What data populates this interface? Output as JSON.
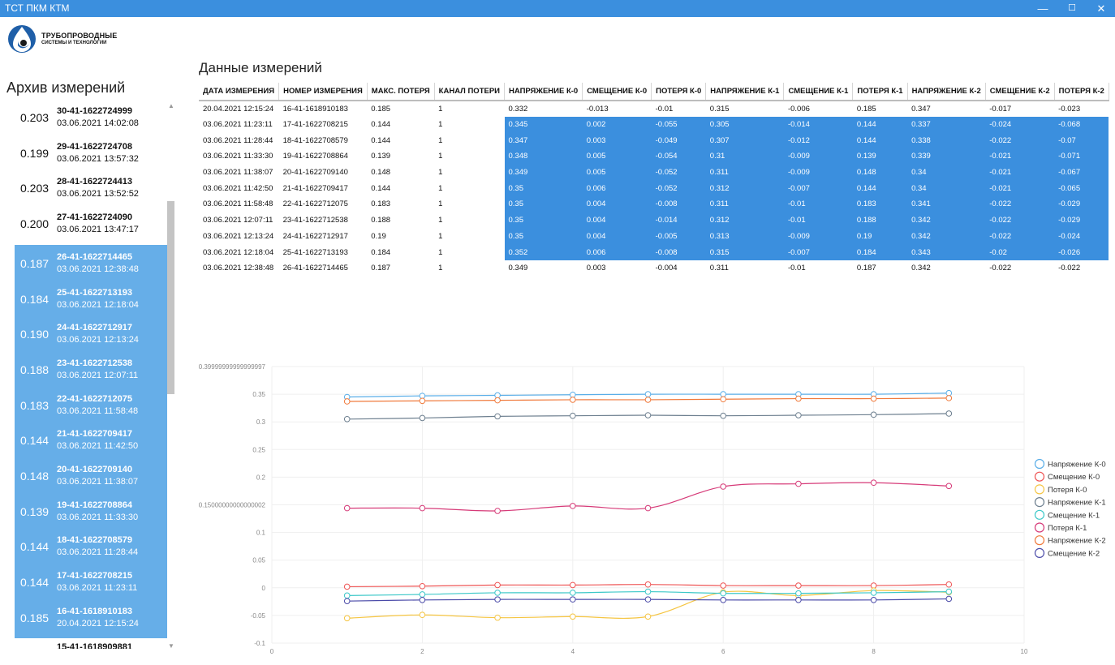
{
  "window": {
    "title": "ТСТ ПКМ КТМ",
    "min_glyph": "—",
    "max_glyph": "☐",
    "close_glyph": "✕"
  },
  "logo": {
    "line1": "ТРУБОПРОВОДНЫЕ",
    "line2": "СИСТЕМЫ И ТЕХНОЛОГИИ"
  },
  "archive": {
    "title": "Архив измерений",
    "items": [
      {
        "value": "0.203",
        "id": "30-41-1622724999",
        "date": "03.06.2021 14:02:08",
        "selected": false
      },
      {
        "value": "0.199",
        "id": "29-41-1622724708",
        "date": "03.06.2021 13:57:32",
        "selected": false
      },
      {
        "value": "0.203",
        "id": "28-41-1622724413",
        "date": "03.06.2021 13:52:52",
        "selected": false
      },
      {
        "value": "0.200",
        "id": "27-41-1622724090",
        "date": "03.06.2021 13:47:17",
        "selected": false
      },
      {
        "value": "0.187",
        "id": "26-41-1622714465",
        "date": "03.06.2021 12:38:48",
        "selected": true
      },
      {
        "value": "0.184",
        "id": "25-41-1622713193",
        "date": "03.06.2021 12:18:04",
        "selected": true
      },
      {
        "value": "0.190",
        "id": "24-41-1622712917",
        "date": "03.06.2021 12:13:24",
        "selected": true
      },
      {
        "value": "0.188",
        "id": "23-41-1622712538",
        "date": "03.06.2021 12:07:11",
        "selected": true
      },
      {
        "value": "0.183",
        "id": "22-41-1622712075",
        "date": "03.06.2021 11:58:48",
        "selected": true
      },
      {
        "value": "0.144",
        "id": "21-41-1622709417",
        "date": "03.06.2021 11:42:50",
        "selected": true
      },
      {
        "value": "0.148",
        "id": "20-41-1622709140",
        "date": "03.06.2021 11:38:07",
        "selected": true
      },
      {
        "value": "0.139",
        "id": "19-41-1622708864",
        "date": "03.06.2021 11:33:30",
        "selected": true
      },
      {
        "value": "0.144",
        "id": "18-41-1622708579",
        "date": "03.06.2021 11:28:44",
        "selected": true
      },
      {
        "value": "0.144",
        "id": "17-41-1622708215",
        "date": "03.06.2021 11:23:11",
        "selected": true
      },
      {
        "value": "0.185",
        "id": "16-41-1618910183",
        "date": "20.04.2021 12:15:24",
        "selected": true
      },
      {
        "value": "",
        "id": "15-41-1618909881",
        "date": "",
        "selected": false
      }
    ]
  },
  "measurements": {
    "title": "Данные измерений",
    "columns": [
      "ДАТА ИЗМЕРЕНИЯ",
      "НОМЕР ИЗМЕРЕНИЯ",
      "МАКС. ПОТЕРЯ",
      "КАНАЛ ПОТЕРИ",
      "НАПРЯЖЕНИЕ К-0",
      "СМЕЩЕНИЕ К-0",
      "ПОТЕРЯ К-0",
      "НАПРЯЖЕНИЕ К-1",
      "СМЕЩЕНИЕ К-1",
      "ПОТЕРЯ К-1",
      "НАПРЯЖЕНИЕ К-2",
      "СМЕЩЕНИЕ К-2",
      "ПОТЕРЯ К-2"
    ],
    "rows": [
      {
        "selected": false,
        "cells": [
          "20.04.2021 12:15:24",
          "16-41-1618910183",
          "0.185",
          "1",
          "0.332",
          "-0.013",
          "-0.01",
          "0.315",
          "-0.006",
          "0.185",
          "0.347",
          "-0.017",
          "-0.023"
        ]
      },
      {
        "selected": true,
        "cells": [
          "03.06.2021 11:23:11",
          "17-41-1622708215",
          "0.144",
          "1",
          "0.345",
          "0.002",
          "-0.055",
          "0.305",
          "-0.014",
          "0.144",
          "0.337",
          "-0.024",
          "-0.068"
        ]
      },
      {
        "selected": true,
        "cells": [
          "03.06.2021 11:28:44",
          "18-41-1622708579",
          "0.144",
          "1",
          "0.347",
          "0.003",
          "-0.049",
          "0.307",
          "-0.012",
          "0.144",
          "0.338",
          "-0.022",
          "-0.07"
        ]
      },
      {
        "selected": true,
        "cells": [
          "03.06.2021 11:33:30",
          "19-41-1622708864",
          "0.139",
          "1",
          "0.348",
          "0.005",
          "-0.054",
          "0.31",
          "-0.009",
          "0.139",
          "0.339",
          "-0.021",
          "-0.071"
        ]
      },
      {
        "selected": true,
        "cells": [
          "03.06.2021 11:38:07",
          "20-41-1622709140",
          "0.148",
          "1",
          "0.349",
          "0.005",
          "-0.052",
          "0.311",
          "-0.009",
          "0.148",
          "0.34",
          "-0.021",
          "-0.067"
        ]
      },
      {
        "selected": true,
        "cells": [
          "03.06.2021 11:42:50",
          "21-41-1622709417",
          "0.144",
          "1",
          "0.35",
          "0.006",
          "-0.052",
          "0.312",
          "-0.007",
          "0.144",
          "0.34",
          "-0.021",
          "-0.065"
        ]
      },
      {
        "selected": true,
        "cells": [
          "03.06.2021 11:58:48",
          "22-41-1622712075",
          "0.183",
          "1",
          "0.35",
          "0.004",
          "-0.008",
          "0.311",
          "-0.01",
          "0.183",
          "0.341",
          "-0.022",
          "-0.029"
        ]
      },
      {
        "selected": true,
        "cells": [
          "03.06.2021 12:07:11",
          "23-41-1622712538",
          "0.188",
          "1",
          "0.35",
          "0.004",
          "-0.014",
          "0.312",
          "-0.01",
          "0.188",
          "0.342",
          "-0.022",
          "-0.029"
        ]
      },
      {
        "selected": true,
        "cells": [
          "03.06.2021 12:13:24",
          "24-41-1622712917",
          "0.19",
          "1",
          "0.35",
          "0.004",
          "-0.005",
          "0.313",
          "-0.009",
          "0.19",
          "0.342",
          "-0.022",
          "-0.024"
        ]
      },
      {
        "selected": true,
        "cells": [
          "03.06.2021 12:18:04",
          "25-41-1622713193",
          "0.184",
          "1",
          "0.352",
          "0.006",
          "-0.008",
          "0.315",
          "-0.007",
          "0.184",
          "0.343",
          "-0.02",
          "-0.026"
        ]
      },
      {
        "selected": false,
        "cells": [
          "03.06.2021 12:38:48",
          "26-41-1622714465",
          "0.187",
          "1",
          "0.349",
          "0.003",
          "-0.004",
          "0.311",
          "-0.01",
          "0.187",
          "0.342",
          "-0.022",
          "-0.022"
        ]
      }
    ]
  },
  "chart_data": {
    "type": "line",
    "title": "",
    "xlabel": "",
    "ylabel": "",
    "xlim": [
      0,
      10
    ],
    "ylim": [
      -0.1,
      0.4
    ],
    "grid": true,
    "legend_position": "right",
    "x_ticks": [
      "0",
      "2",
      "4",
      "6",
      "8",
      "10"
    ],
    "y_ticks": [
      {
        "value": 0.4,
        "label": "0.39999999999999997"
      },
      {
        "value": 0.35,
        "label": "0.35"
      },
      {
        "value": 0.3,
        "label": "0.3"
      },
      {
        "value": 0.25,
        "label": "0.25"
      },
      {
        "value": 0.2,
        "label": "0.2"
      },
      {
        "value": 0.15,
        "label": "0.15000000000000002"
      },
      {
        "value": 0.1,
        "label": "0.1"
      },
      {
        "value": 0.05,
        "label": "0.05"
      },
      {
        "value": 0,
        "label": "0"
      },
      {
        "value": -0.05,
        "label": "-0.05"
      },
      {
        "value": -0.1,
        "label": "-0.1"
      }
    ],
    "x": [
      1,
      2,
      3,
      4,
      5,
      6,
      7,
      8,
      9
    ],
    "series": [
      {
        "name": "Напряжение К-0",
        "color": "#5aaee8",
        "values": [
          0.345,
          0.347,
          0.348,
          0.349,
          0.35,
          0.35,
          0.35,
          0.35,
          0.352
        ]
      },
      {
        "name": "Смещение К-0",
        "color": "#ee5555",
        "values": [
          0.002,
          0.003,
          0.005,
          0.005,
          0.006,
          0.004,
          0.004,
          0.004,
          0.006
        ]
      },
      {
        "name": "Потеря К-0",
        "color": "#f5c542",
        "values": [
          -0.055,
          -0.049,
          -0.054,
          -0.052,
          -0.052,
          -0.008,
          -0.014,
          -0.005,
          -0.008
        ]
      },
      {
        "name": "Напряжение К-1",
        "color": "#6d7f8f",
        "values": [
          0.305,
          0.307,
          0.31,
          0.311,
          0.312,
          0.311,
          0.312,
          0.313,
          0.315
        ]
      },
      {
        "name": "Смещение К-1",
        "color": "#3cc8c8",
        "values": [
          -0.014,
          -0.012,
          -0.009,
          -0.009,
          -0.007,
          -0.01,
          -0.01,
          -0.009,
          -0.007
        ]
      },
      {
        "name": "Потеря К-1",
        "color": "#d63a78",
        "values": [
          0.144,
          0.144,
          0.139,
          0.148,
          0.144,
          0.183,
          0.188,
          0.19,
          0.184
        ]
      },
      {
        "name": "Напряжение К-2",
        "color": "#f07a3c",
        "values": [
          0.337,
          0.338,
          0.339,
          0.34,
          0.34,
          0.341,
          0.342,
          0.342,
          0.343
        ]
      },
      {
        "name": "Смещение К-2",
        "color": "#4a4aa8",
        "values": [
          -0.024,
          -0.022,
          -0.021,
          -0.021,
          -0.021,
          -0.022,
          -0.022,
          -0.022,
          -0.02
        ]
      }
    ]
  }
}
